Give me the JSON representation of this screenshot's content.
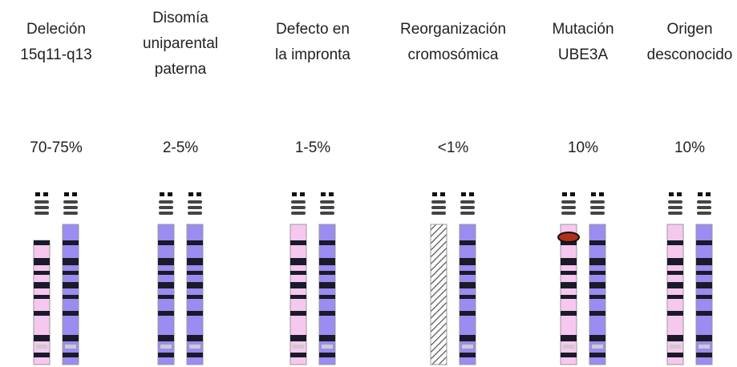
{
  "columns": [
    {
      "label": [
        "Deleción",
        "15q11-q13"
      ],
      "percent": "70-75%"
    },
    {
      "label": [
        "Disomía",
        "uniparental",
        "paterna"
      ],
      "percent": "2-5%"
    },
    {
      "label": [
        "Defecto en",
        "la impronta"
      ],
      "percent": "1-5%"
    },
    {
      "label": [
        "Reorganización",
        "cromosómica"
      ],
      "percent": "<1%"
    },
    {
      "label": [
        "Mutación",
        "UBE3A"
      ],
      "percent": "10%"
    },
    {
      "label": [
        "Origen",
        "desconocido"
      ],
      "percent": "10%"
    }
  ]
}
